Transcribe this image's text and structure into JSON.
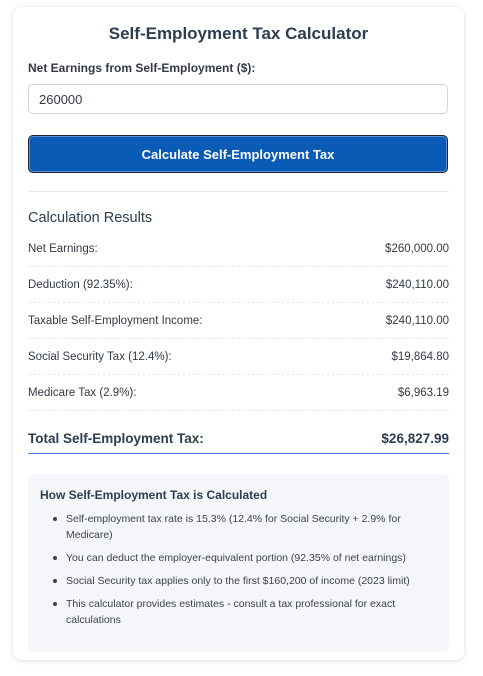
{
  "title": "Self-Employment Tax Calculator",
  "input": {
    "label": "Net Earnings from Self-Employment ($):",
    "value": "260000",
    "placeholder": ""
  },
  "calculate_button": "Calculate Self-Employment Tax",
  "results": {
    "title": "Calculation Results",
    "rows": [
      {
        "label": "Net Earnings:",
        "value": "$260,000.00"
      },
      {
        "label": "Deduction (92.35%):",
        "value": "$240,110.00"
      },
      {
        "label": "Taxable Self-Employment Income:",
        "value": "$240,110.00"
      },
      {
        "label": "Social Security Tax (12.4%):",
        "value": "$19,864.80"
      },
      {
        "label": "Medicare Tax (2.9%):",
        "value": "$6,963.19"
      }
    ],
    "total": {
      "label": "Total Self-Employment Tax:",
      "value": "$26,827.99"
    }
  },
  "info": {
    "title": "How Self-Employment Tax is Calculated",
    "items": [
      "Self-employment tax rate is 15.3% (12.4% for Social Security + 2.9% for Medicare)",
      "You can deduct the employer-equivalent portion (92.35% of net earnings)",
      "Social Security tax applies only to the first $160,200 of income (2023 limit)",
      "This calculator provides estimates - consult a tax professional for exact calculations"
    ]
  },
  "colors": {
    "button": "#0a5bb5",
    "total_underline": "#3b7dd8",
    "info_background": "#f4f6f9"
  }
}
